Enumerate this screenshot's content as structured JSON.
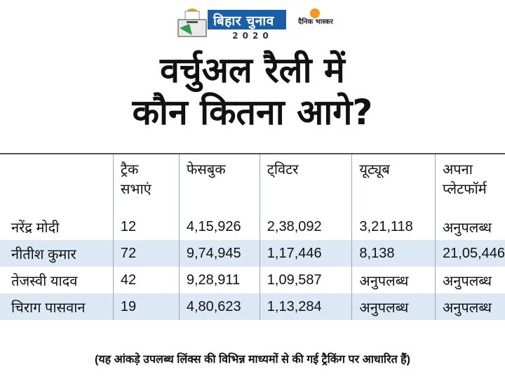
{
  "header": {
    "brand": "बिहार चुनाव",
    "year": "2020",
    "publisher": "दैनिक भास्कर"
  },
  "title": {
    "line1": "वर्चुअल रैली में",
    "line2": "कौन कितना आगे?"
  },
  "table": {
    "headers": [
      "",
      "ट्रैक सभाएं",
      "फेसबुक",
      "ट्विटर",
      "यूट्यूब",
      "अपना प्लेटफॉर्म"
    ],
    "header_lines": [
      [
        "",
        ""
      ],
      [
        "ट्रैक",
        "सभाएं"
      ],
      [
        "फेसबुक",
        ""
      ],
      [
        "ट्विटर",
        ""
      ],
      [
        "यूट्यूब",
        ""
      ],
      [
        "अपना",
        "प्लेटफॉर्म"
      ]
    ],
    "rows": [
      [
        "नरेंद्र मोदी",
        "12",
        "4,15,926",
        "2,38,092",
        "3,21,118",
        "अनुपलब्ध"
      ],
      [
        "नीतीश कुमार",
        "72",
        "9,74,945",
        "1,17,446",
        "8,138",
        "21,05,446"
      ],
      [
        "तेजस्वी यादव",
        "42",
        "9,28,911",
        "1,09,587",
        "अनुपलब्ध",
        "अनुपलब्ध"
      ],
      [
        "चिराग पासवान",
        "19",
        "4,80,623",
        "1,13,284",
        "अनुपलब्ध",
        "अनुपलब्ध"
      ]
    ]
  },
  "footnote": "(यह आंकड़े उपलब्ध लिंक्स की विभिन्न माध्यमों से की गई ट्रैकिंग पर आधारित हैं)",
  "colors": {
    "brand_blue": "#1b5ea8",
    "row_shade": "#dde8f5",
    "sun_orange": "#f39a1e"
  }
}
